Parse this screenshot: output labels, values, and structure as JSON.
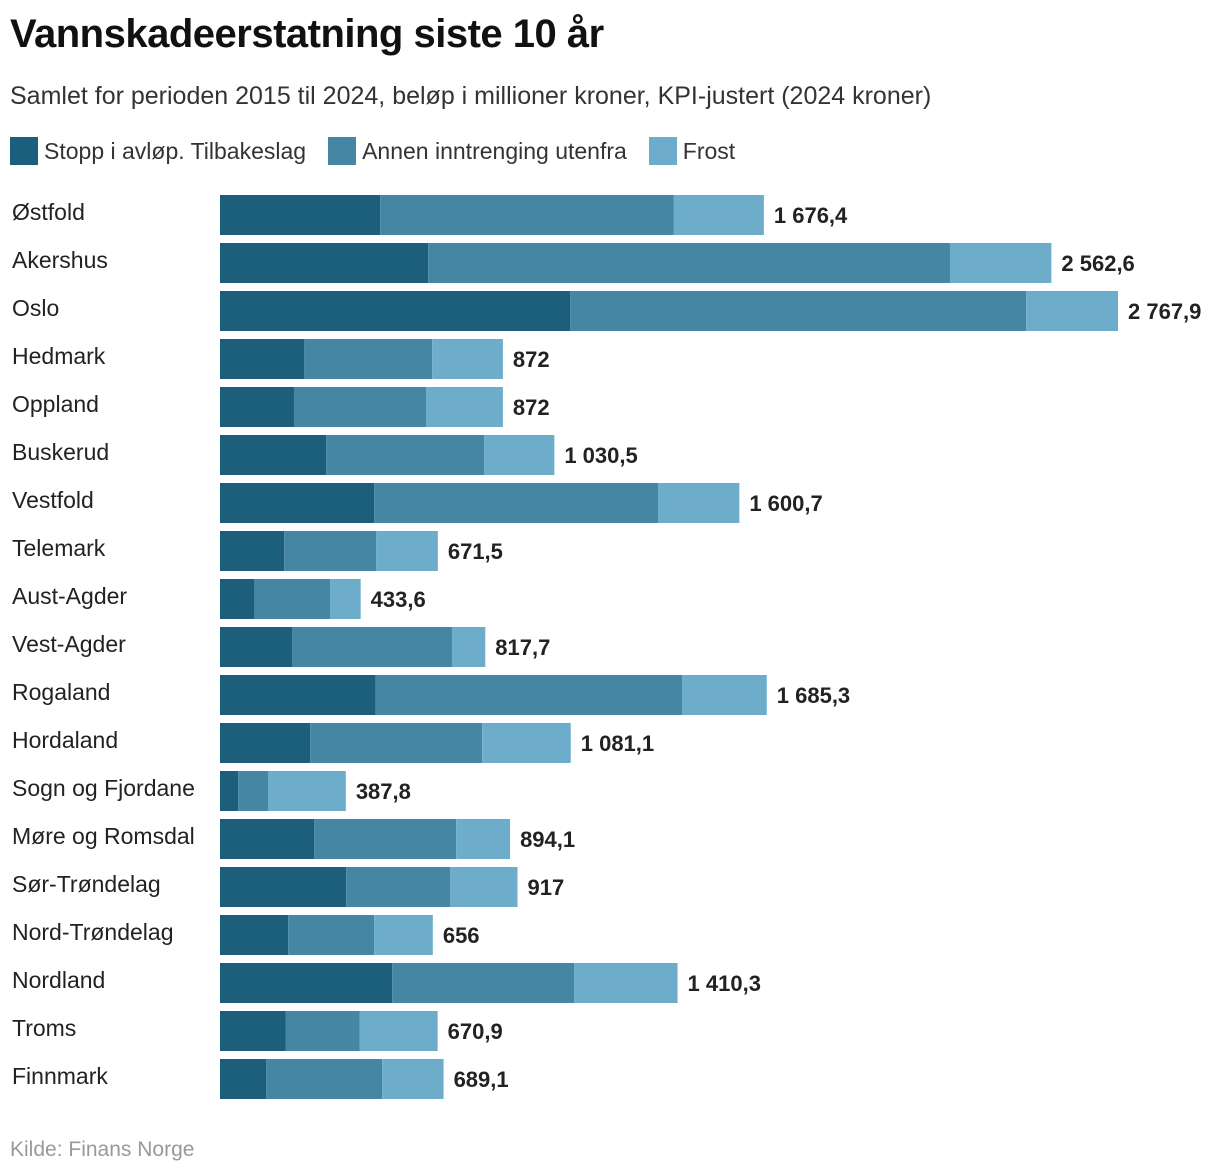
{
  "header": {
    "title": "Vannskadeerstatning siste 10 år",
    "subtitle": "Samlet for perioden 2015 til 2024, beløp i millioner kroner, KPI-justert (2024 kroner)"
  },
  "legend": [
    {
      "label": "Stopp i avløp. Tilbakeslag",
      "color": "#1b5f7d"
    },
    {
      "label": "Annen inntrenging utenfra",
      "color": "#4686a5"
    },
    {
      "label": "Frost",
      "color": "#6dadcb"
    }
  ],
  "chart_data": {
    "type": "bar",
    "orientation": "horizontal",
    "stacked": true,
    "title": "Vannskadeerstatning siste 10 år",
    "xlabel": "",
    "ylabel": "",
    "xlim": [
      0,
      2767.9
    ],
    "grid": false,
    "categories": [
      "Østfold",
      "Akershus",
      "Oslo",
      "Hedmark",
      "Oppland",
      "Buskerud",
      "Vestfold",
      "Telemark",
      "Aust-Agder",
      "Vest-Agder",
      "Rogaland",
      "Hordaland",
      "Sogn og Fjordane",
      "Møre og Romsdal",
      "Sør-Trøndelag",
      "Nord-Trøndelag",
      "Nordland",
      "Troms",
      "Finnmark"
    ],
    "series": [
      {
        "name": "Stopp i avløp. Tilbakeslag",
        "color": "#1b5f7d",
        "values": [
          494,
          642,
          1079,
          259,
          228,
          327,
          475,
          198,
          106,
          222,
          480,
          278,
          56,
          290,
          389,
          210,
          531,
          203,
          142
        ]
      },
      {
        "name": "Annen inntrenging utenfra",
        "color": "#4686a5",
        "values": [
          905,
          1608,
          1406,
          395,
          408,
          487,
          875,
          283,
          234,
          493,
          944,
          530,
          92,
          438,
          321,
          265,
          561,
          228,
          358
        ]
      },
      {
        "name": "Frost",
        "color": "#6dadcb",
        "values": [
          277.4,
          312.6,
          282.9,
          218,
          236,
          216.5,
          250.7,
          190.5,
          93.6,
          102.7,
          261.3,
          273.1,
          239.8,
          166.1,
          207,
          181,
          318.3,
          239.9,
          189.1
        ]
      }
    ],
    "totals": [
      "1 676,4",
      "2 562,6",
      "2 767,9",
      "872",
      "872",
      "1 030,5",
      "1 600,7",
      "671,5",
      "433,6",
      "817,7",
      "1 685,3",
      "1 081,1",
      "387,8",
      "894,1",
      "917",
      "656",
      "1 410,3",
      "670,9",
      "689,1"
    ]
  },
  "footer": {
    "source": "Kilde: Finans Norge"
  }
}
